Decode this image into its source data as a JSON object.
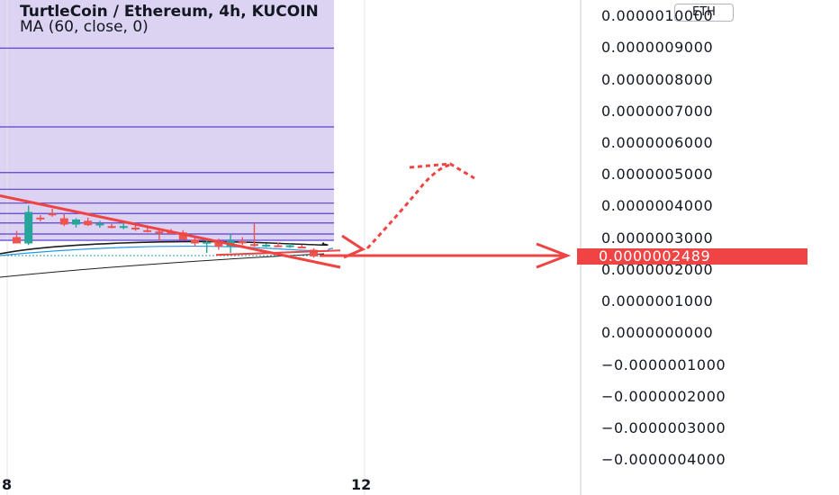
{
  "header": {
    "title": "TurtleCoin / Ethereum, 4h, KUCOIN",
    "indicator": "MA (60, close, 0)"
  },
  "currency_tag": "ETH",
  "price_badge": "0.0000002489",
  "x_axis": {
    "labels": [
      "8",
      "12"
    ]
  },
  "chart_data": {
    "type": "candlestick",
    "title": "TurtleCoin / Ethereum, 4h, KUCOIN",
    "y_axis_ticks": [
      "0.0000010000",
      "0.0000009000",
      "0.0000008000",
      "0.0000007000",
      "0.0000006000",
      "0.0000005000",
      "0.0000004000",
      "0.0000003000",
      "0.0000002489",
      "0.0000002000",
      "0.0000001000",
      "0.0000000000",
      "−0.0000001000",
      "−0.0000002000",
      "−0.0000003000",
      "−0.0000004000"
    ],
    "ylim": [
      -4e-07,
      1e-06
    ],
    "last_price": 2.489e-07,
    "x_ticks": [
      "8",
      "12"
    ],
    "indicator": "MA (60, close, 0)",
    "candles": [
      {
        "o": 3.1e-07,
        "h": 3.3e-07,
        "l": 2.9e-07,
        "c": 2.9e-07,
        "color": "red"
      },
      {
        "o": 2.9e-07,
        "h": 4.1e-07,
        "l": 2.85e-07,
        "c": 3.9e-07,
        "color": "teal"
      },
      {
        "o": 3.7e-07,
        "h": 3.8e-07,
        "l": 3.6e-07,
        "c": 3.72e-07,
        "color": "red"
      },
      {
        "o": 3.85e-07,
        "h": 4e-07,
        "l": 3.75e-07,
        "c": 3.8e-07,
        "color": "red"
      },
      {
        "o": 3.7e-07,
        "h": 3.85e-07,
        "l": 3.45e-07,
        "c": 3.5e-07,
        "color": "red"
      },
      {
        "o": 3.5e-07,
        "h": 3.7e-07,
        "l": 3.4e-07,
        "c": 3.66e-07,
        "color": "teal"
      },
      {
        "o": 3.62e-07,
        "h": 3.72e-07,
        "l": 3.45e-07,
        "c": 3.48e-07,
        "color": "red"
      },
      {
        "o": 3.5e-07,
        "h": 3.62e-07,
        "l": 3.4e-07,
        "c": 3.53e-07,
        "color": "teal"
      },
      {
        "o": 3.45e-07,
        "h": 3.52e-07,
        "l": 3.38e-07,
        "c": 3.4e-07,
        "color": "red"
      },
      {
        "o": 3.4e-07,
        "h": 3.6e-07,
        "l": 3.35e-07,
        "c": 3.45e-07,
        "color": "teal"
      },
      {
        "o": 3.4e-07,
        "h": 3.48e-07,
        "l": 3.3e-07,
        "c": 3.35e-07,
        "color": "red"
      },
      {
        "o": 3.32e-07,
        "h": 3.4e-07,
        "l": 3.25e-07,
        "c": 3.28e-07,
        "color": "red"
      },
      {
        "o": 3.28e-07,
        "h": 3.35e-07,
        "l": 3e-07,
        "c": 3.26e-07,
        "color": "red"
      },
      {
        "o": 3.26e-07,
        "h": 3.36e-07,
        "l": 3.2e-07,
        "c": 3.24e-07,
        "color": "red"
      },
      {
        "o": 3.25e-07,
        "h": 3.32e-07,
        "l": 3.02e-07,
        "c": 3.02e-07,
        "color": "red"
      },
      {
        "o": 3.02e-07,
        "h": 3.1e-07,
        "l": 2.8e-07,
        "c": 2.9e-07,
        "color": "red"
      },
      {
        "o": 2.9e-07,
        "h": 3e-07,
        "l": 2.6e-07,
        "c": 2.95e-07,
        "color": "teal"
      },
      {
        "o": 2.95e-07,
        "h": 3.05e-07,
        "l": 2.7e-07,
        "c": 2.8e-07,
        "color": "red"
      },
      {
        "o": 2.8e-07,
        "h": 3.2e-07,
        "l": 2.6e-07,
        "c": 3e-07,
        "color": "teal"
      },
      {
        "o": 2.96e-07,
        "h": 3.1e-07,
        "l": 2.85e-07,
        "c": 2.9e-07,
        "color": "red"
      },
      {
        "o": 2.88e-07,
        "h": 3.55e-07,
        "l": 2.8e-07,
        "c": 2.84e-07,
        "color": "red"
      },
      {
        "o": 2.84e-07,
        "h": 2.9e-07,
        "l": 2.78e-07,
        "c": 2.86e-07,
        "color": "teal"
      },
      {
        "o": 2.84e-07,
        "h": 2.92e-07,
        "l": 2.78e-07,
        "c": 2.82e-07,
        "color": "red"
      },
      {
        "o": 2.82e-07,
        "h": 2.9e-07,
        "l": 2.76e-07,
        "c": 2.84e-07,
        "color": "teal"
      },
      {
        "o": 2.8e-07,
        "h": 2.86e-07,
        "l": 2.75e-07,
        "c": 2.78e-07,
        "color": "red"
      },
      {
        "o": 2.7e-07,
        "h": 2.75e-07,
        "l": 2.45e-07,
        "c": 2.49e-07,
        "color": "red"
      }
    ],
    "horizontal_levels": [
      9.1e-07,
      6.6e-07,
      5.15e-07,
      4.62e-07,
      4.18e-07,
      3.85e-07,
      3.55e-07,
      3.2e-07,
      3e-07
    ],
    "trendline": {
      "y_start": 4.3e-07,
      "y_end": 2.6e-07
    },
    "projection_peak": 5.5e-07,
    "colors": {
      "up": "#26a69a",
      "down": "#ef5350",
      "fib_lines": "#5b3fd1",
      "shade": "#dcd3f2",
      "annotation": "#ef4444",
      "ma": "#1e1e1e",
      "ma_blue": "#2196f3"
    }
  }
}
